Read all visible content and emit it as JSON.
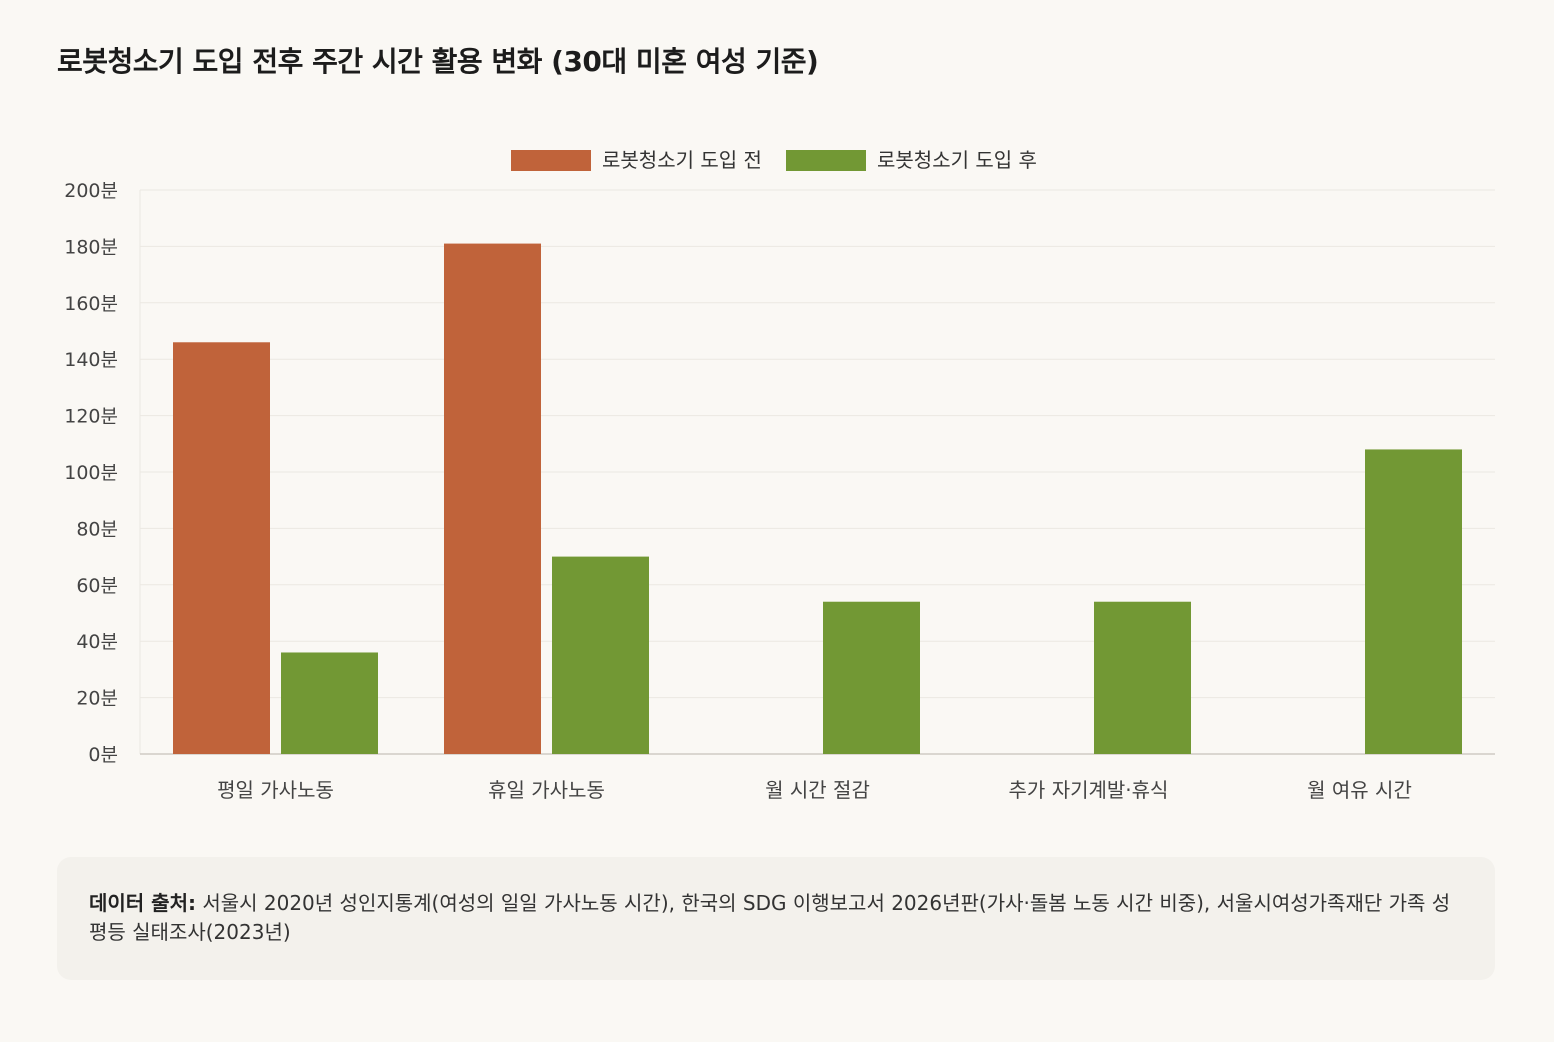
{
  "title": "로봇청소기 도입 전후 주간 시간 활용 변화 (30대 미혼 여성 기준)",
  "colors": {
    "before": "#c0633a",
    "after": "#729834",
    "grid": "#ebe8e2",
    "axis": "#cfcbc4",
    "tick_text": "#444444"
  },
  "chart_data": {
    "type": "bar",
    "title": "로봇청소기 도입 전후 주간 시간 활용 변화 (30대 미혼 여성 기준)",
    "categories": [
      "평일 가사노동",
      "휴일 가사노동",
      "월 시간 절감",
      "추가 자기계발·휴식",
      "월 여유 시간"
    ],
    "series": [
      {
        "name": "로봇청소기 도입 전",
        "values": [
          146,
          181,
          null,
          null,
          null
        ]
      },
      {
        "name": "로봇청소기 도입 후",
        "values": [
          36,
          70,
          54,
          54,
          108
        ]
      }
    ],
    "ylim": [
      0,
      200
    ],
    "yticks": [
      "0분",
      "20분",
      "40분",
      "60분",
      "80분",
      "100분",
      "120분",
      "140분",
      "160분",
      "180분",
      "200분"
    ],
    "ytick_values": [
      0,
      20,
      40,
      60,
      80,
      100,
      120,
      140,
      160,
      180,
      200
    ],
    "legend": "top-center",
    "grid": true
  },
  "source": {
    "label": "데이터 출처:",
    "text": " 서울시 2020년 성인지통계(여성의 일일 가사노동 시간), 한국의 SDG 이행보고서 2026년판(가사·돌봄 노동 시간 비중), 서울시여성가족재단 가족 성평등 실태조사(2023년)"
  }
}
